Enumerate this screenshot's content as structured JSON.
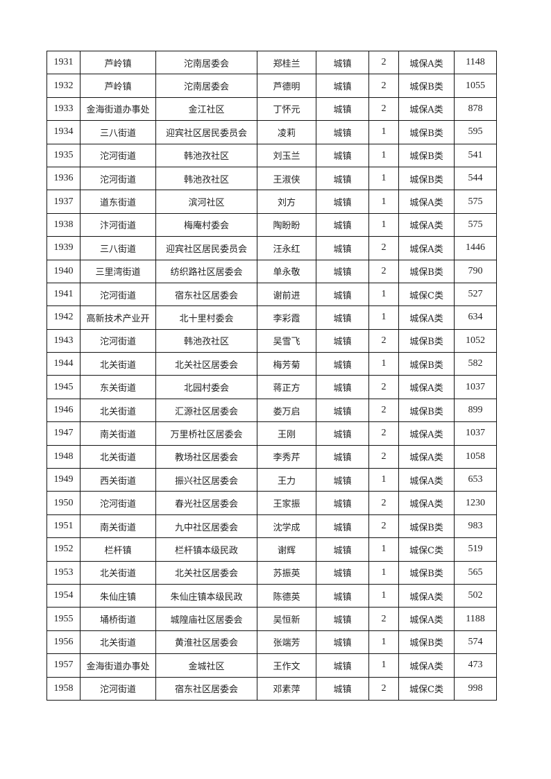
{
  "rows": [
    [
      "1931",
      "芦岭镇",
      "沱南居委会",
      "郑桂兰",
      "城镇",
      "2",
      "城保A类",
      "1148"
    ],
    [
      "1932",
      "芦岭镇",
      "沱南居委会",
      "芦德明",
      "城镇",
      "2",
      "城保B类",
      "1055"
    ],
    [
      "1933",
      "金海街道办事处",
      "金江社区",
      "丁怀元",
      "城镇",
      "2",
      "城保A类",
      "878"
    ],
    [
      "1934",
      "三八街道",
      "迎宾社区居民委员会",
      "凌莉",
      "城镇",
      "1",
      "城保B类",
      "595"
    ],
    [
      "1935",
      "沱河街道",
      "韩池孜社区",
      "刘玉兰",
      "城镇",
      "1",
      "城保B类",
      "541"
    ],
    [
      "1936",
      "沱河街道",
      "韩池孜社区",
      "王淑侠",
      "城镇",
      "1",
      "城保B类",
      "544"
    ],
    [
      "1937",
      "道东街道",
      "滨河社区",
      "刘方",
      "城镇",
      "1",
      "城保A类",
      "575"
    ],
    [
      "1938",
      "汴河街道",
      "梅庵村委会",
      "陶盼盼",
      "城镇",
      "1",
      "城保A类",
      "575"
    ],
    [
      "1939",
      "三八街道",
      "迎宾社区居民委员会",
      "汪永红",
      "城镇",
      "2",
      "城保A类",
      "1446"
    ],
    [
      "1940",
      "三里湾街道",
      "纺织路社区居委会",
      "单永敬",
      "城镇",
      "2",
      "城保B类",
      "790"
    ],
    [
      "1941",
      "沱河街道",
      "宿东社区居委会",
      "谢前进",
      "城镇",
      "1",
      "城保C类",
      "527"
    ],
    [
      "1942",
      "高新技术产业开",
      "北十里村委会",
      "李彩霞",
      "城镇",
      "1",
      "城保A类",
      "634"
    ],
    [
      "1943",
      "沱河街道",
      "韩池孜社区",
      "吴雪飞",
      "城镇",
      "2",
      "城保B类",
      "1052"
    ],
    [
      "1944",
      "北关街道",
      "北关社区居委会",
      "梅芳菊",
      "城镇",
      "1",
      "城保B类",
      "582"
    ],
    [
      "1945",
      "东关街道",
      "北园村委会",
      "蒋正方",
      "城镇",
      "2",
      "城保A类",
      "1037"
    ],
    [
      "1946",
      "北关街道",
      "汇源社区居委会",
      "娄万启",
      "城镇",
      "2",
      "城保B类",
      "899"
    ],
    [
      "1947",
      "南关街道",
      "万里桥社区居委会",
      "王刚",
      "城镇",
      "2",
      "城保A类",
      "1037"
    ],
    [
      "1948",
      "北关街道",
      "教场社区居委会",
      "李秀芹",
      "城镇",
      "2",
      "城保A类",
      "1058"
    ],
    [
      "1949",
      "西关街道",
      "振兴社区居委会",
      "王力",
      "城镇",
      "1",
      "城保A类",
      "653"
    ],
    [
      "1950",
      "沱河街道",
      "春光社区居委会",
      "王家振",
      "城镇",
      "2",
      "城保A类",
      "1230"
    ],
    [
      "1951",
      "南关街道",
      "九中社区居委会",
      "沈学成",
      "城镇",
      "2",
      "城保B类",
      "983"
    ],
    [
      "1952",
      "栏杆镇",
      "栏杆镇本级民政",
      "谢辉",
      "城镇",
      "1",
      "城保C类",
      "519"
    ],
    [
      "1953",
      "北关街道",
      "北关社区居委会",
      "苏振英",
      "城镇",
      "1",
      "城保B类",
      "565"
    ],
    [
      "1954",
      "朱仙庄镇",
      "朱仙庄镇本级民政",
      "陈德英",
      "城镇",
      "1",
      "城保A类",
      "502"
    ],
    [
      "1955",
      "埇桥街道",
      "城隍庙社区居委会",
      "吴恒新",
      "城镇",
      "2",
      "城保A类",
      "1188"
    ],
    [
      "1956",
      "北关街道",
      "黄淮社区居委会",
      "张端芳",
      "城镇",
      "1",
      "城保B类",
      "574"
    ],
    [
      "1957",
      "金海街道办事处",
      "金城社区",
      "王作文",
      "城镇",
      "1",
      "城保A类",
      "473"
    ],
    [
      "1958",
      "沱河街道",
      "宿东社区居委会",
      "邓素萍",
      "城镇",
      "2",
      "城保C类",
      "998"
    ]
  ]
}
